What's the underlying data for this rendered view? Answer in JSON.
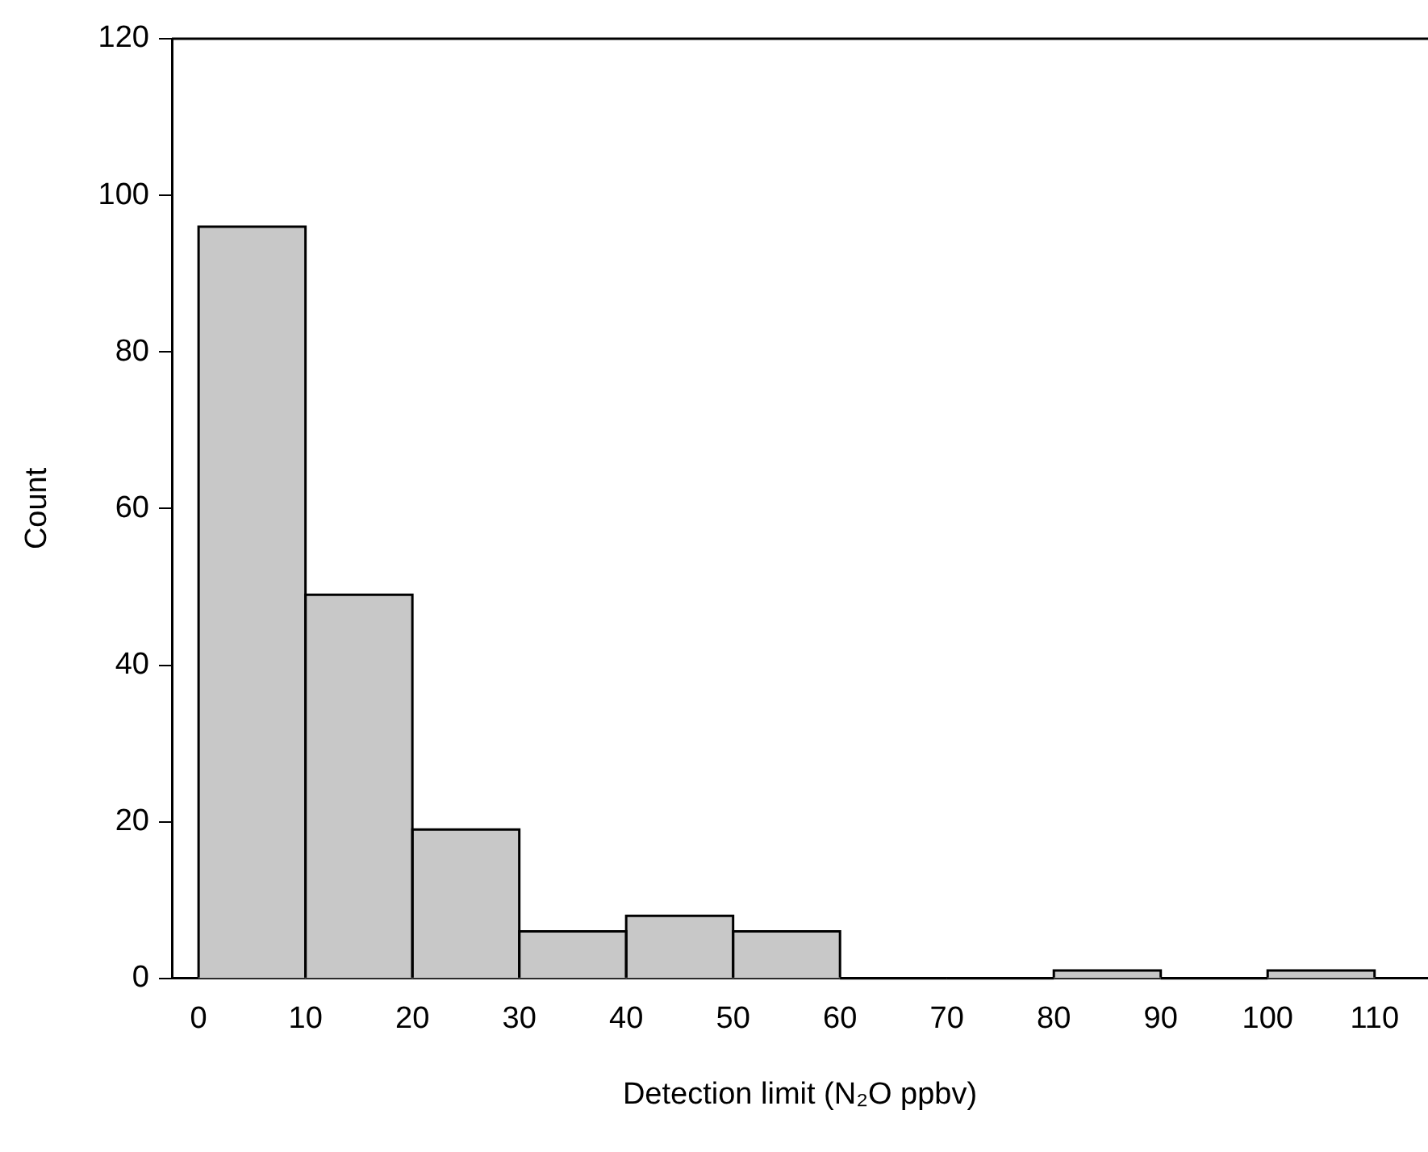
{
  "chart_data": {
    "type": "histogram",
    "xlabel": "Detection limit (N₂O ppbv)",
    "ylabel": "Count",
    "bins": [
      0,
      10,
      20,
      30,
      40,
      50,
      60,
      70,
      80,
      90,
      100,
      110
    ],
    "values": [
      96,
      49,
      19,
      6,
      8,
      6,
      0,
      0,
      1,
      0,
      1
    ],
    "color": "#c8c8c8",
    "xlim": [
      -2.5,
      115
    ],
    "xticks": [
      0,
      10,
      20,
      30,
      40,
      50,
      60,
      70,
      80,
      90,
      100,
      110
    ],
    "ylim": [
      0,
      120
    ],
    "yticks": [
      0,
      20,
      40,
      60,
      80,
      100,
      120
    ],
    "grid": false,
    "legend": false
  }
}
